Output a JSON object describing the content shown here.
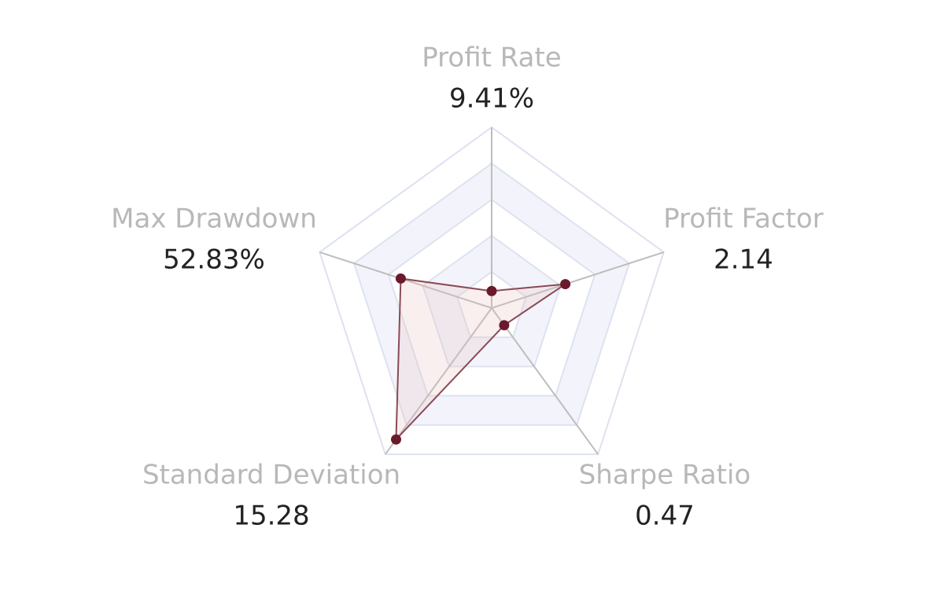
{
  "chart_data": {
    "type": "radar",
    "indicators": [
      {
        "name": "Profit Rate",
        "max": 100
      },
      {
        "name": "Profit Factor",
        "max": 5
      },
      {
        "name": "Sharpe Ratio",
        "max": 4
      },
      {
        "name": "Standard Deviation",
        "max": 17
      },
      {
        "name": "Max Drawdown",
        "max": 100
      }
    ],
    "split_number": 5,
    "series": [
      {
        "color": "#6b1a2b",
        "values": [
          9.41,
          2.14,
          0.47,
          15.28,
          52.83
        ],
        "value_labels": [
          "9.41%",
          "2.14",
          "0.47",
          "15.28",
          "52.83%"
        ]
      }
    ]
  }
}
